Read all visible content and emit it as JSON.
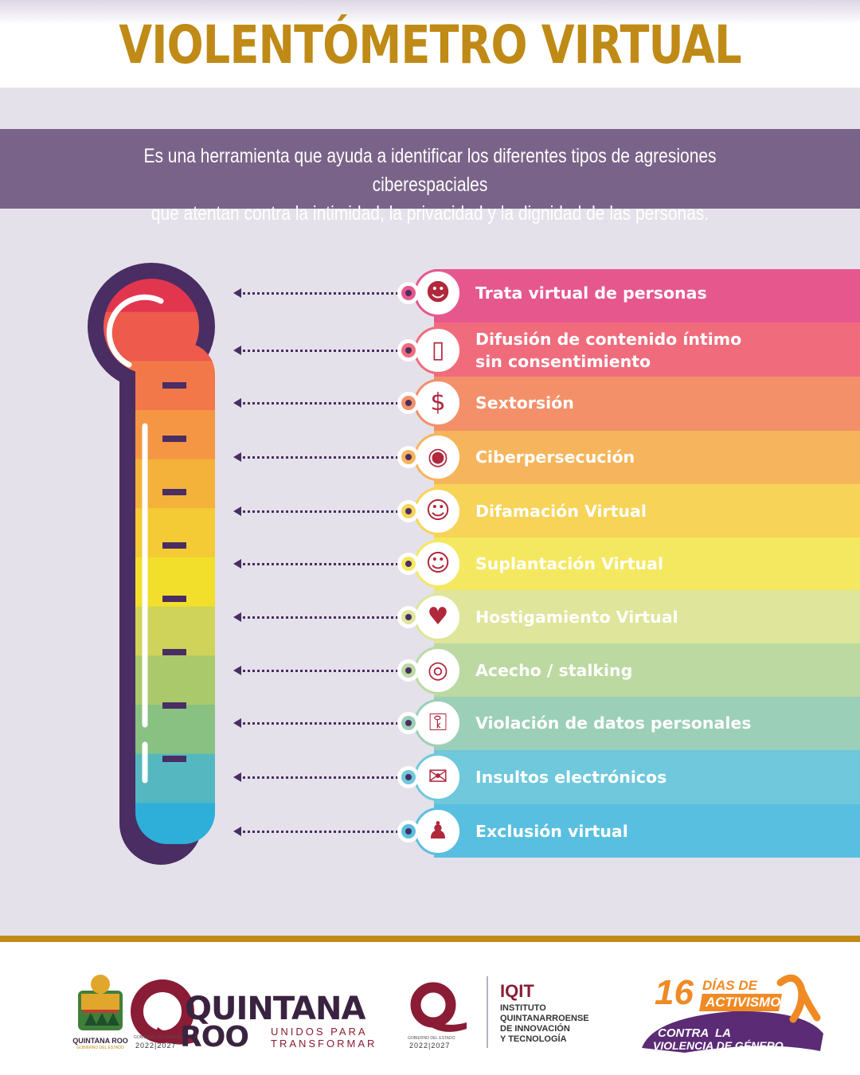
{
  "title": "VIOLENTÓMETRO VIRTUAL",
  "intro": {
    "line1": "Es una herramienta que ayuda a identificar los diferentes tipos de agresiones ciberespaciales",
    "line2": "que atentan contra la intimidad, la privacidad y la dignidad de las personas."
  },
  "items": [
    {
      "line1": "Trata virtual de personas",
      "line2": "",
      "color": "#e6578e",
      "icon": "masked-person-icon"
    },
    {
      "line1": "Difusión de contenido íntimo",
      "line2": "sin consentimiento",
      "color": "#f06c7c",
      "icon": "phone-photo-icon"
    },
    {
      "line1": "Sextorsión",
      "line2": "",
      "color": "#f3906a",
      "icon": "secret-money-icon"
    },
    {
      "line1": "Ciberpersecución",
      "line2": "",
      "color": "#f6b55c",
      "icon": "spy-wifi-icon"
    },
    {
      "line1": "Difamación Virtual",
      "line2": "",
      "color": "#f7d458",
      "icon": "gossip-face-icon"
    },
    {
      "line1": "Suplantación Virtual",
      "line2": "",
      "color": "#f5e861",
      "icon": "swap-faces-icon"
    },
    {
      "line1": "Hostigamiento Virtual",
      "line2": "",
      "color": "#dfe59a",
      "icon": "likes-heart-icon"
    },
    {
      "line1": "Acecho / stalking",
      "line2": "",
      "color": "#bcd9a2",
      "icon": "phone-eye-icon"
    },
    {
      "line1": "Violación de datos personales",
      "line2": "",
      "color": "#9ccfb7",
      "icon": "padlock-icon"
    },
    {
      "line1": "Insultos electrónicos",
      "line2": "",
      "color": "#6fc8dc",
      "icon": "chat-insult-icon"
    },
    {
      "line1": "Exclusión virtual",
      "line2": "",
      "color": "#59bfe0",
      "icon": "excluded-person-icon"
    }
  ],
  "thermometer": {
    "segment_colors": [
      "#e2364f",
      "#ee5a4b",
      "#f2784a",
      "#f49643",
      "#f5b23b",
      "#f4cb34",
      "#f2df2c",
      "#cfd35a",
      "#a9c96b",
      "#88c182",
      "#55b8c0",
      "#2eafd9"
    ]
  },
  "footer": {
    "qroo_seal_name": "QUINTANA ROO",
    "qroo_seal_sub": "GOBIERNO DEL ESTADO",
    "qroo_word1": "QUINTANA",
    "qroo_word2": "ROO",
    "slogan1": "UNIDOS PARA",
    "slogan2": "TRANSFORMAR",
    "gov_label": "GOBIERNO DEL ESTADO",
    "years": "2022|2027",
    "gov_label_2": "GOBIERNO DEL ESTADO",
    "years_2": "2022|2027",
    "iqit_short": "IQIT",
    "iqit_line1": "INSTITUTO",
    "iqit_line2": "QUINTANARROENSE",
    "iqit_line3": "DE INNOVACIÓN",
    "iqit_line4": "Y TECNOLOGÍA",
    "campaign_num": "16",
    "campaign_days": "DÍAS DE",
    "campaign_act": "ACTIVISMO",
    "campaign_line1": "CONTRA  LA",
    "campaign_line2": "VIOLENCIA DE GÉNERO"
  },
  "colors": {
    "gold": "#c08a16",
    "purple_band": "#7a6388",
    "outline": "#4a2d62",
    "bg": "#e4e1ea"
  }
}
